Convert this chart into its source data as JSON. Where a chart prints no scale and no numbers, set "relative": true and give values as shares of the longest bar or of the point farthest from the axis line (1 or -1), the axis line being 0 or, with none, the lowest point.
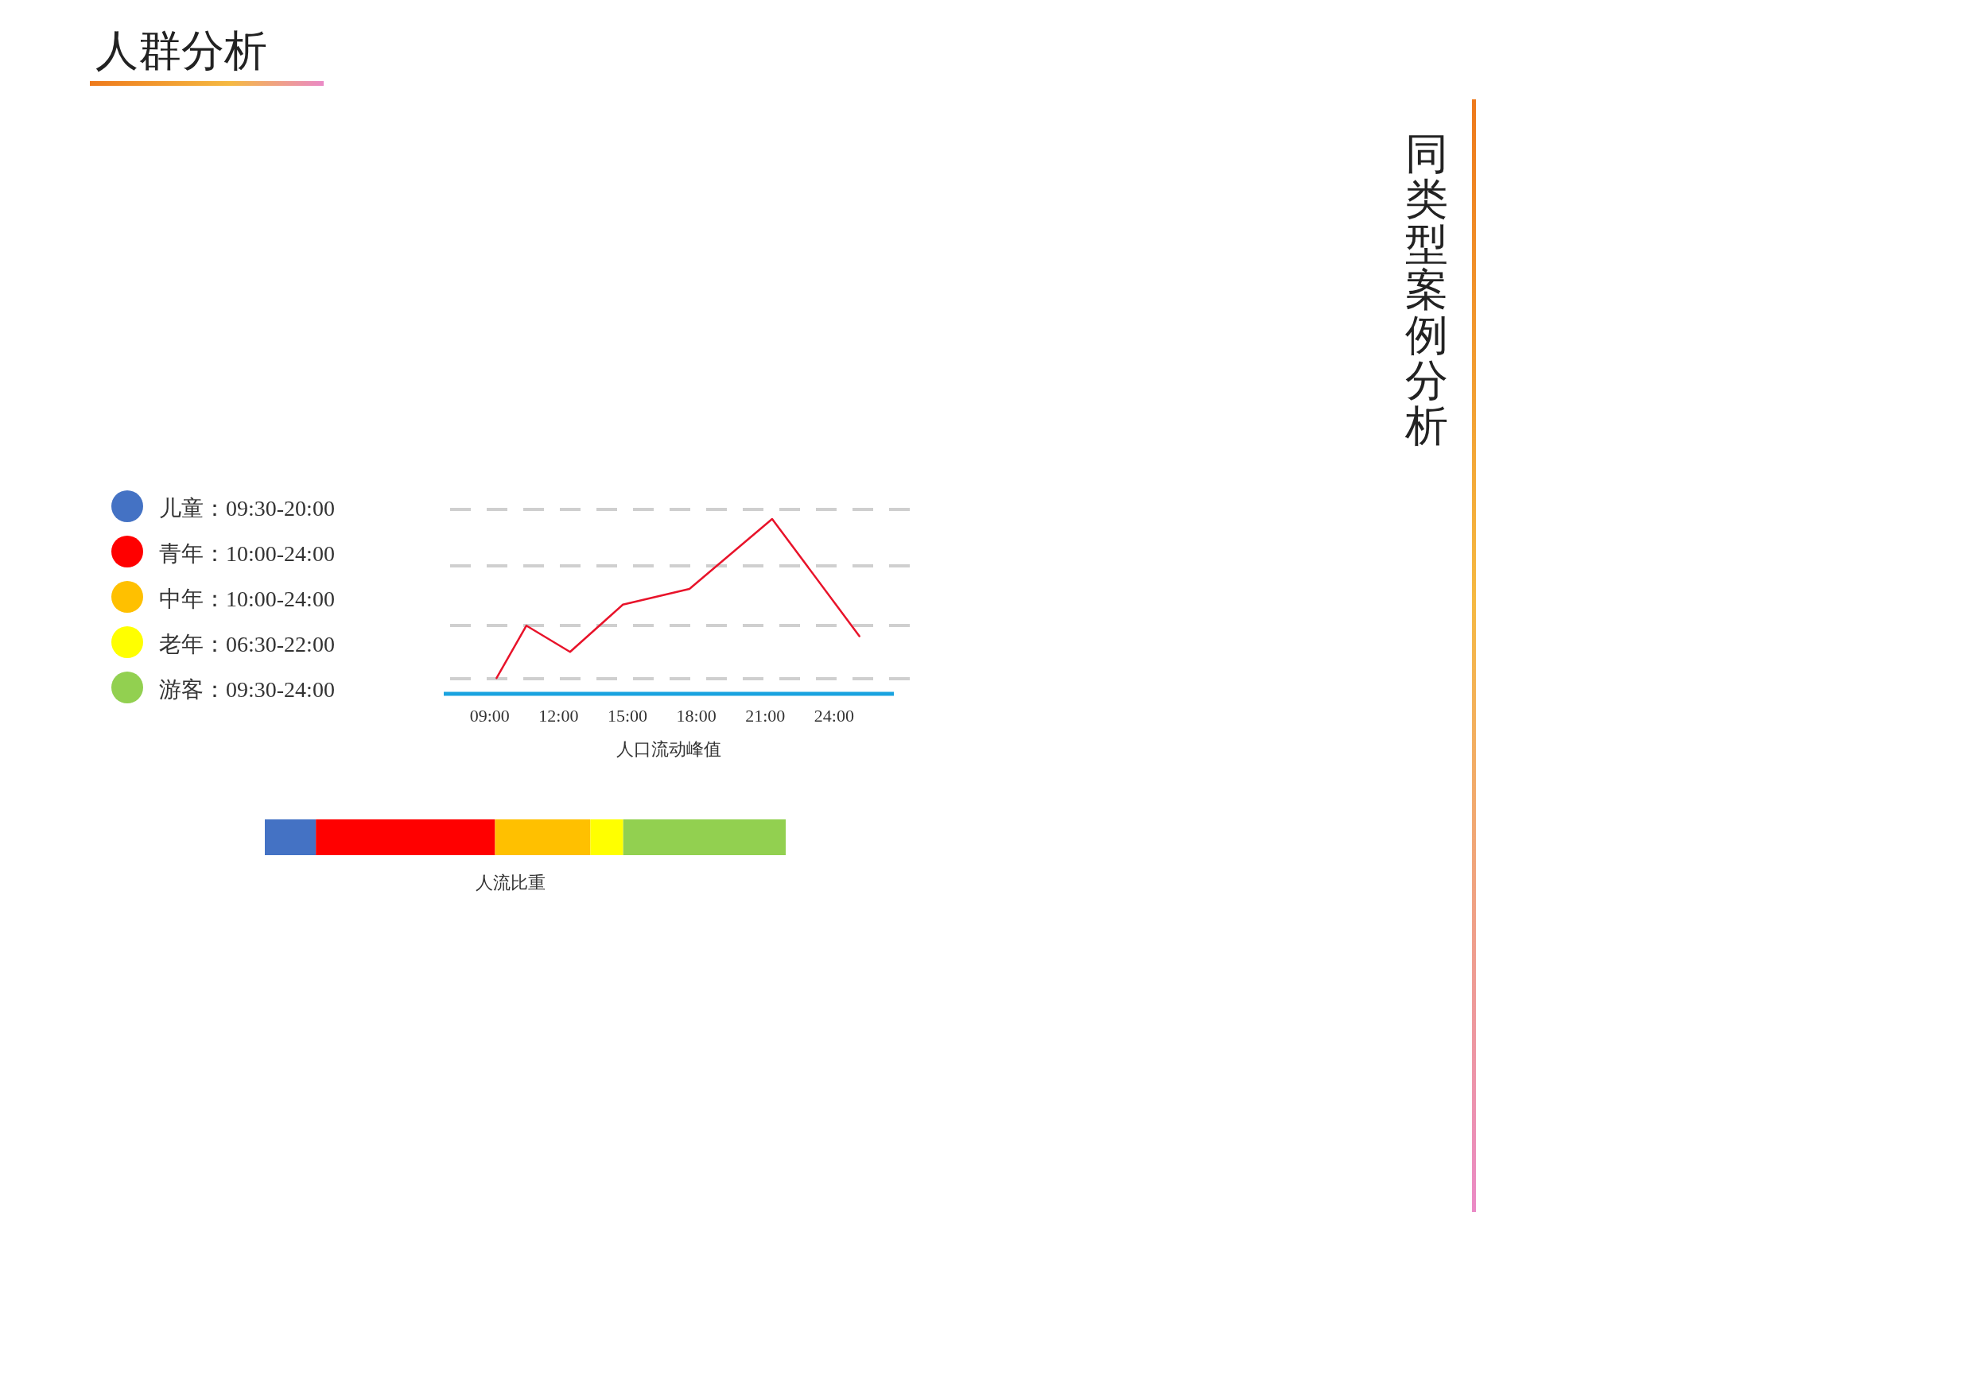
{
  "chart_data": [
    {
      "type": "other",
      "title": "人群分析",
      "annotations": [
        "同类型案例分析"
      ]
    },
    {
      "type": "line",
      "relative": true,
      "xlabel": "人口流动峰值",
      "xlim": [
        7,
        26.6
      ],
      "xticks": [
        {
          "value": 9,
          "label": "09:00"
        },
        {
          "value": 12,
          "label": "12:00"
        },
        {
          "value": 15,
          "label": "15:00"
        },
        {
          "value": 18,
          "label": "18:00"
        },
        {
          "value": 21,
          "label": "21:00"
        },
        {
          "value": 24,
          "label": "24:00"
        }
      ],
      "grid": true,
      "marker": "none",
      "line_style": "solid",
      "series": [
        {
          "color": "#e8132a",
          "x": [
            9.3,
            10.6,
            12.5,
            14.8,
            17.7,
            21.3,
            25.1
          ],
          "values": [
            0.09,
            0.39,
            0.24,
            0.51,
            0.6,
            1,
            0.33
          ]
        }
      ]
    },
    {
      "type": "bar",
      "orientation": "horizontal",
      "stacked": true,
      "relative": true,
      "xlabel": "人流比重",
      "categories": [
        null
      ],
      "legend": "top left",
      "series": [
        {
          "name": "儿童：09:30-20:00",
          "color": "#4472c4",
          "values": [
            0.098
          ]
        },
        {
          "name": "青年：10:00-24:00",
          "color": "#ff0000",
          "values": [
            0.344
          ]
        },
        {
          "name": "中年：10:00-24:00",
          "color": "#ffc000",
          "values": [
            0.183
          ]
        },
        {
          "name": "老年：06:30-22:00",
          "color": "#ffff00",
          "values": [
            0.063
          ]
        },
        {
          "name": "游客：09:30-24:00",
          "color": "#92d050",
          "values": [
            0.312
          ]
        }
      ]
    }
  ]
}
